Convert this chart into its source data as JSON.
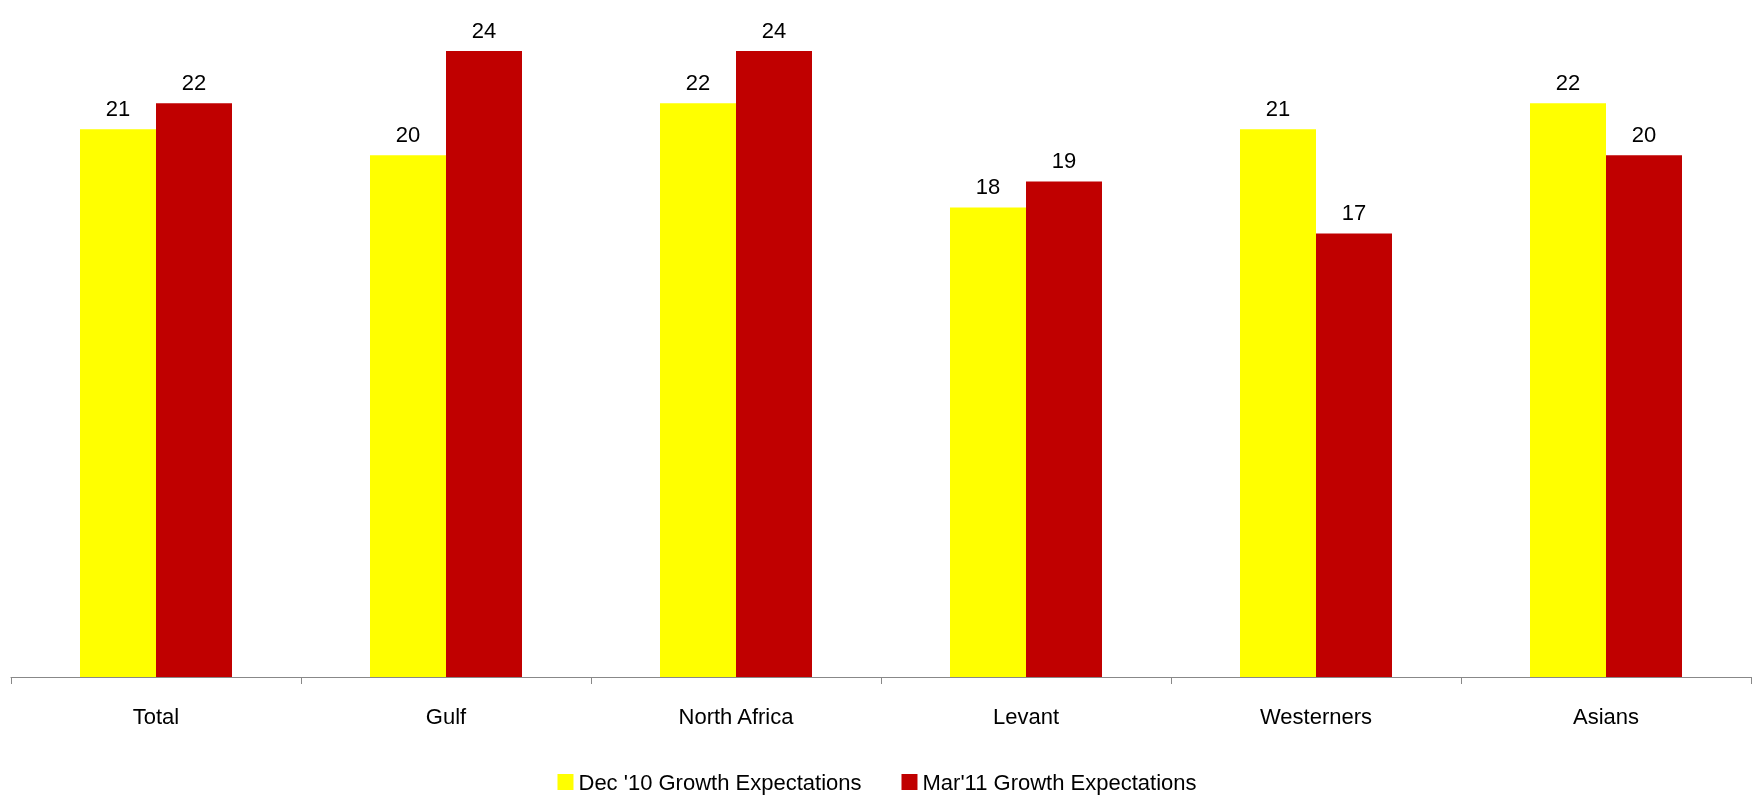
{
  "chart_data": {
    "type": "bar",
    "categories": [
      "Total",
      "Gulf",
      "North Africa",
      "Levant",
      "Westerners",
      "Asians"
    ],
    "series": [
      {
        "name": "Dec '10 Growth Expectations",
        "color": "#ffff00",
        "values": [
          21,
          20,
          22,
          18,
          21,
          22
        ]
      },
      {
        "name": "Mar'11 Growth Expectations",
        "color": "#c00000",
        "values": [
          22,
          24,
          24,
          19,
          17,
          20
        ]
      }
    ],
    "data_labels": true,
    "legend": "bottom",
    "grid": false
  }
}
